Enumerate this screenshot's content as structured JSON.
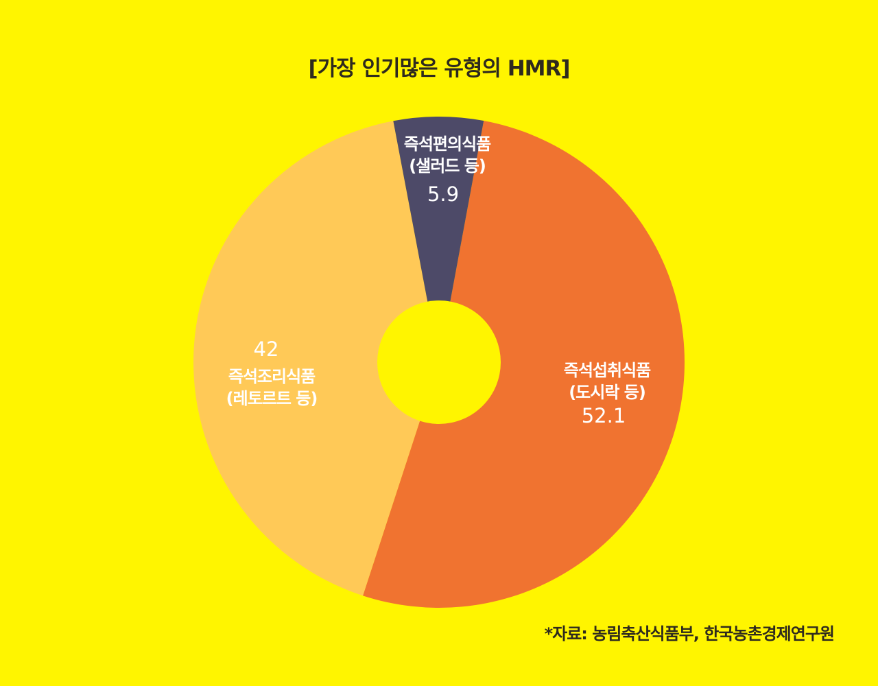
{
  "page": {
    "background": "#FFF500",
    "source": "*자료: 농림축산식품부, 한국농촌경제연구원"
  },
  "chart_data": {
    "type": "pie",
    "title": "[가장 인기많은 유형의 HMR]",
    "donut": true,
    "slices": [
      {
        "name_lines": [
          "즉석섭취식품",
          "(도시락 등)"
        ],
        "value": 52.1,
        "value_label": "52.1",
        "color": "#F07330"
      },
      {
        "name_lines": [
          "즉석조리식품",
          "(레토르트 등)"
        ],
        "value": 42,
        "value_label": "42",
        "color": "#FFC957"
      },
      {
        "name_lines": [
          "즉석편의식품",
          "(샐러드 등)"
        ],
        "value": 5.9,
        "value_label": "5.9",
        "color": "#4D4A68"
      }
    ],
    "legend": "none",
    "grid": false
  }
}
